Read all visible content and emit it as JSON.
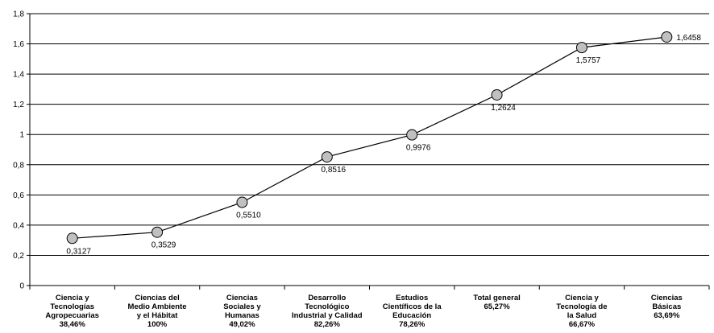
{
  "chart_data": {
    "type": "line",
    "categories": [
      [
        "Ciencia y",
        "Tecnologías",
        "Agropecuarias",
        "38,46%"
      ],
      [
        "Ciencias del",
        "Medio Ambiente",
        "y el Hábitat",
        "100%"
      ],
      [
        "Ciencias",
        "Sociales y",
        "Humanas",
        "49,02%"
      ],
      [
        "Desarrollo",
        "Tecnológico",
        "Industrial y Calidad",
        "82,26%"
      ],
      [
        "Estudios",
        "Científicos de la",
        "Educación",
        "78,26%"
      ],
      [
        "Total general",
        "65,27%"
      ],
      [
        "Ciencia y",
        "Tecnología de",
        "la Salud",
        "66,67%"
      ],
      [
        "Ciencias",
        "Básicas",
        "63,69%"
      ]
    ],
    "values": [
      0.3127,
      0.3529,
      0.551,
      0.8516,
      0.9976,
      1.2624,
      1.5757,
      1.6458
    ],
    "data_labels": [
      "0,3127",
      "0,3529",
      "0,5510",
      "0,8516",
      "0,9976",
      "1,2624",
      "1,5757",
      "1,6458"
    ],
    "yticks": [
      "0",
      "0,2",
      "0,4",
      "0,6",
      "0,8",
      "1",
      "1,2",
      "1,4",
      "1,6",
      "1,8"
    ],
    "ylim": [
      0,
      1.8
    ],
    "grid": true,
    "line_color": "#000000",
    "marker_fill": "#c0c0c0",
    "marker_stroke": "#000000"
  }
}
